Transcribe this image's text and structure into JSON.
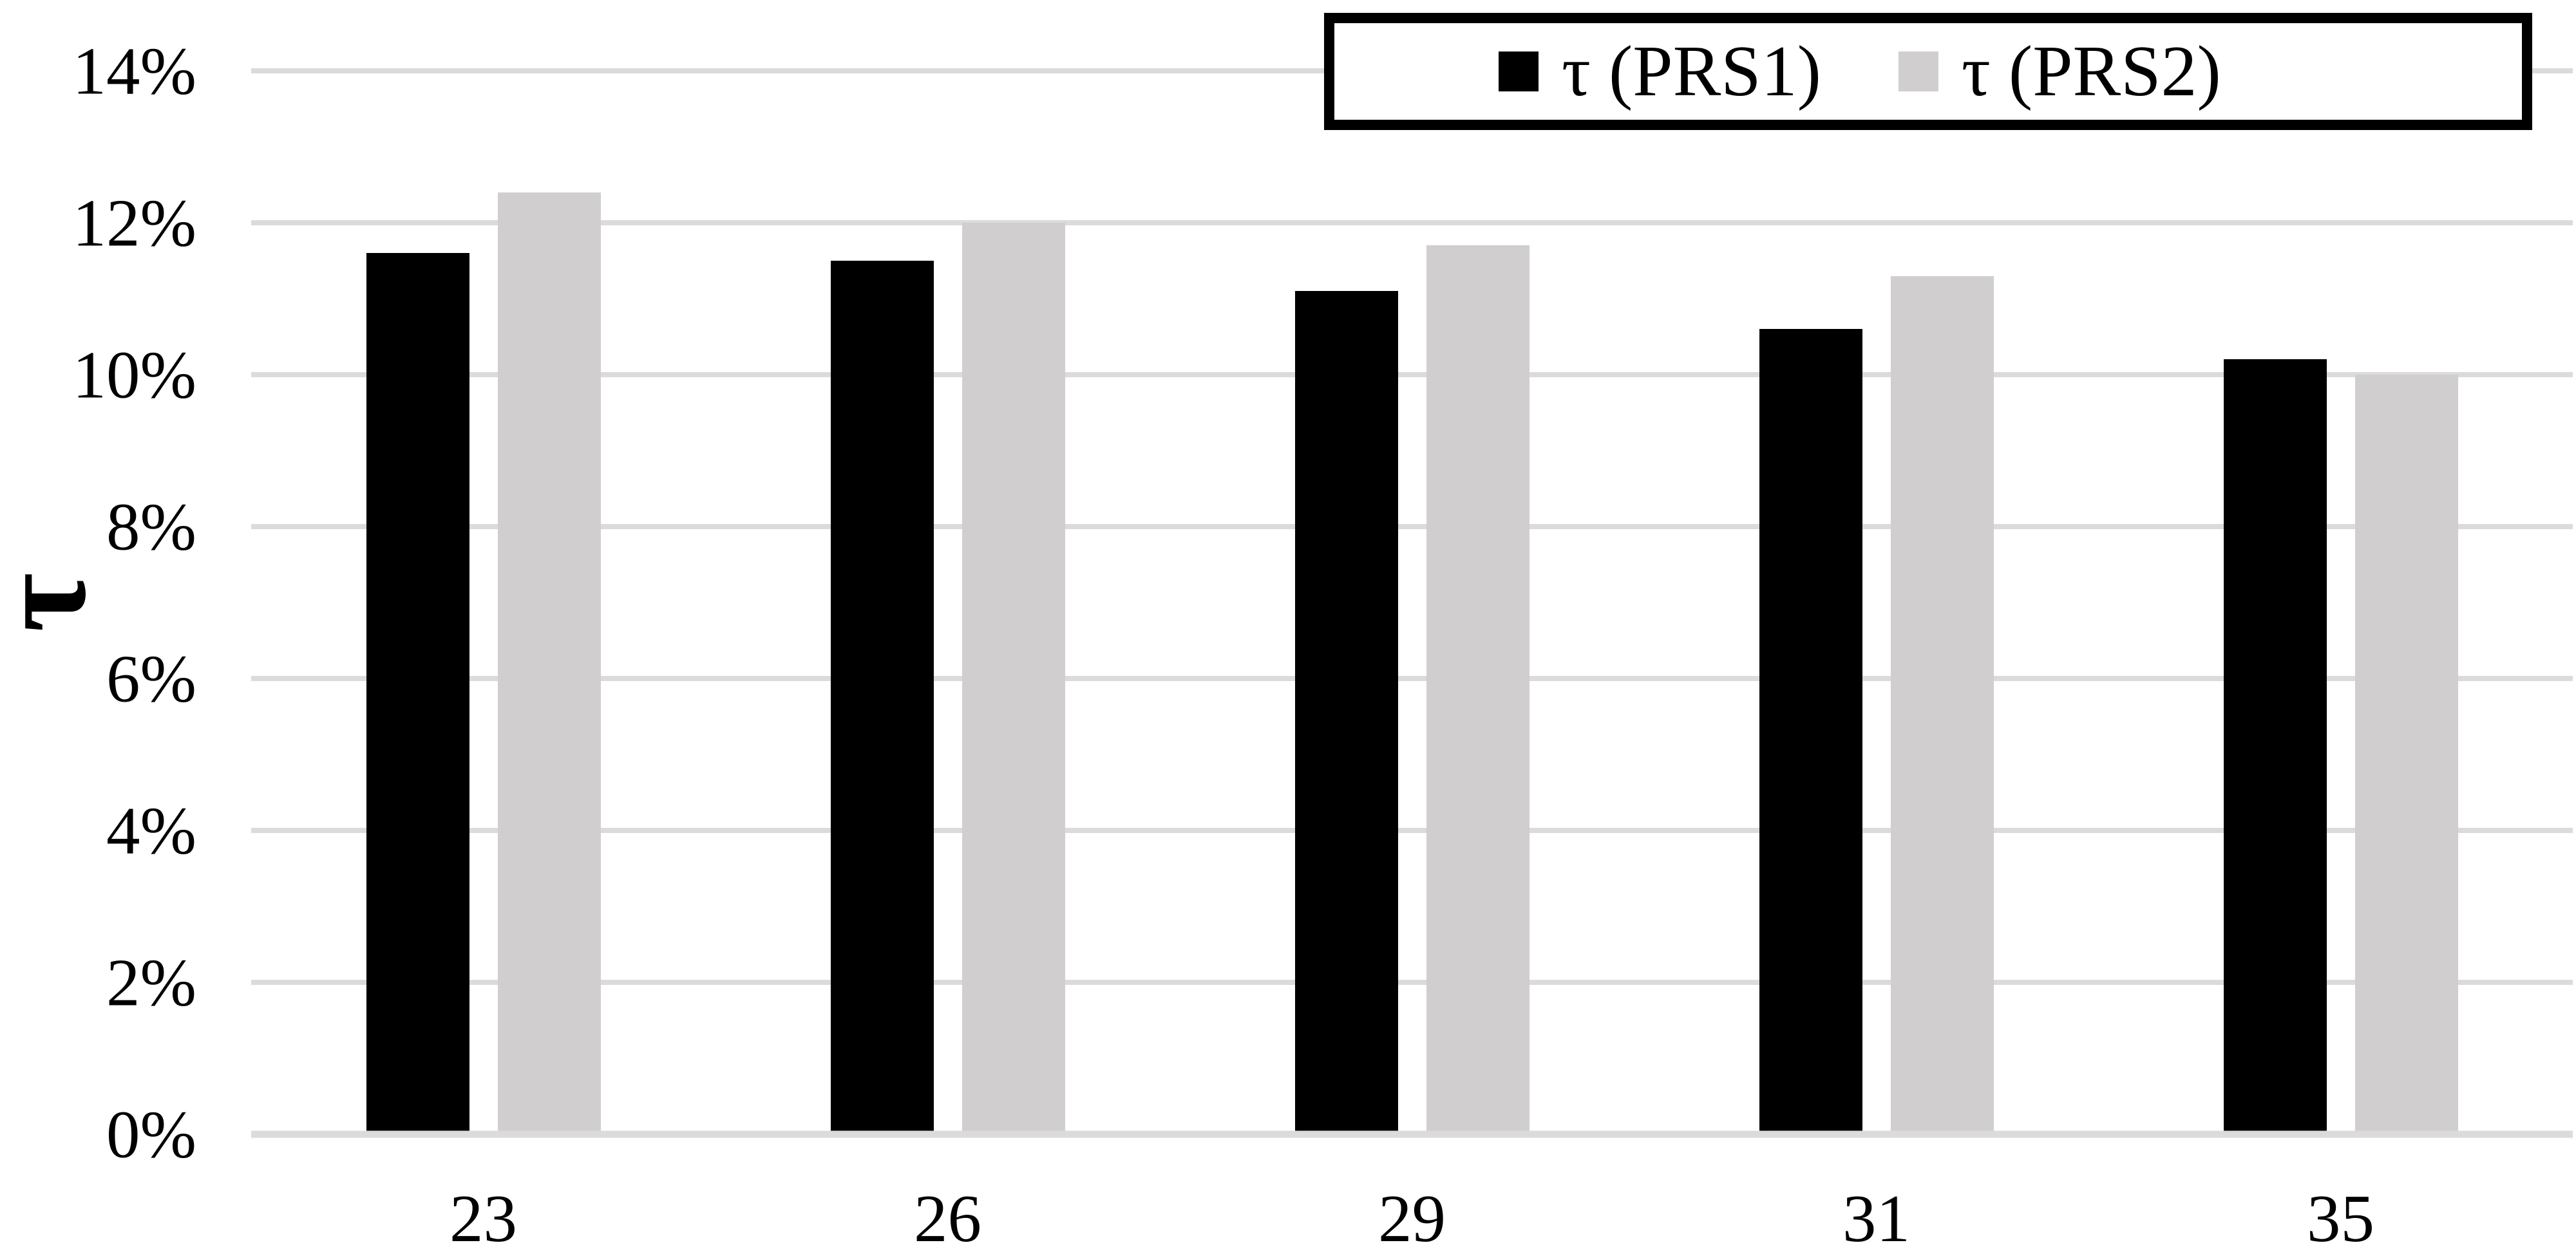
{
  "chart_data": {
    "type": "bar",
    "categories": [
      "23",
      "26",
      "29",
      "31",
      "35"
    ],
    "series": [
      {
        "name": "τ (PRS1)",
        "color": "#000000",
        "values": [
          11.6,
          11.5,
          11.1,
          10.6,
          10.2
        ]
      },
      {
        "name": "τ (PRS2)",
        "color": "#d0cece",
        "values": [
          12.4,
          12.0,
          11.7,
          11.3,
          10.0
        ]
      }
    ],
    "title": "",
    "xlabel": "",
    "ylabel": "τ",
    "ylim": [
      0,
      14
    ],
    "ytick_step": 2,
    "ytick_labels": [
      "0%",
      "2%",
      "4%",
      "6%",
      "8%",
      "10%",
      "12%",
      "14%"
    ],
    "value_format": "percent",
    "grid": "horizontal",
    "gridline_color": "#dbdbdb",
    "legend": {
      "position": "top-right",
      "border": true,
      "entries": [
        "τ (PRS1)",
        "τ (PRS2)"
      ]
    }
  }
}
